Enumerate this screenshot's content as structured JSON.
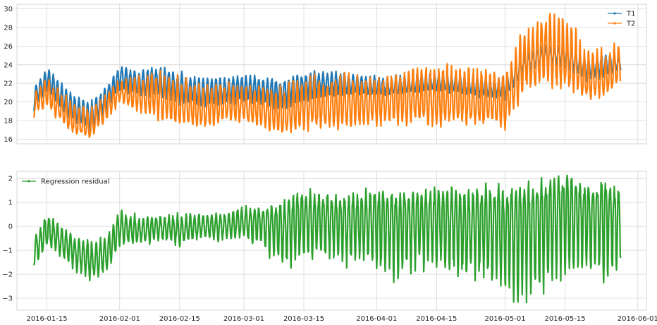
{
  "chart_data": [
    {
      "type": "line",
      "title": "",
      "xlabel": "",
      "ylabel": "",
      "ylim": [
        15.5,
        30.5
      ],
      "yticks": [
        "16",
        "18",
        "20",
        "22",
        "24",
        "26",
        "28",
        "30"
      ],
      "grid": true,
      "legend_position": "top-right",
      "x_range": [
        "2016-01-08",
        "2016-06-03"
      ],
      "x": [
        "2016-01-12",
        "2016-01-15",
        "2016-01-20",
        "2016-01-25",
        "2016-01-29",
        "2016-02-01",
        "2016-02-05",
        "2016-02-10",
        "2016-02-15",
        "2016-02-20",
        "2016-02-25",
        "2016-03-01",
        "2016-03-05",
        "2016-03-10",
        "2016-03-15",
        "2016-03-20",
        "2016-03-25",
        "2016-04-01",
        "2016-04-05",
        "2016-04-10",
        "2016-04-15",
        "2016-04-20",
        "2016-04-25",
        "2016-05-01",
        "2016-05-05",
        "2016-05-10",
        "2016-05-15",
        "2016-05-20",
        "2016-05-25",
        "2016-05-28"
      ],
      "series": [
        {
          "name": "T1",
          "color": "#1f77b4",
          "values": [
            20.5,
            22.5,
            19.5,
            18.2,
            20.5,
            22.8,
            22.0,
            22.3,
            21.5,
            21.0,
            21.2,
            21.5,
            21.3,
            21.0,
            21.8,
            22.0,
            21.8,
            21.5,
            21.5,
            21.8,
            22.0,
            21.8,
            21.5,
            21.3,
            24.0,
            25.0,
            25.2,
            23.5,
            24.0,
            24.2
          ],
          "min": [
            19.0,
            21.0,
            18.2,
            16.8,
            19.0,
            21.3,
            20.8,
            20.5,
            19.8,
            19.5,
            19.8,
            20.0,
            19.8,
            19.2,
            20.0,
            20.5,
            20.8,
            20.8,
            20.8,
            21.0,
            21.2,
            21.0,
            20.5,
            20.3,
            22.8,
            23.8,
            23.5,
            22.3,
            22.8,
            23.5
          ],
          "max": [
            21.6,
            23.7,
            21.3,
            20.0,
            21.8,
            24.0,
            23.4,
            23.8,
            23.2,
            22.6,
            22.8,
            23.0,
            22.8,
            22.5,
            23.2,
            23.3,
            23.2,
            22.8,
            22.8,
            23.0,
            23.2,
            23.0,
            22.8,
            22.6,
            25.2,
            26.0,
            26.0,
            24.6,
            25.3,
            25.0
          ]
        },
        {
          "name": "T2",
          "color": "#ff7f0e",
          "values": [
            19.5,
            21.0,
            18.0,
            17.0,
            19.5,
            21.0,
            20.5,
            20.5,
            19.5,
            19.0,
            19.5,
            19.5,
            19.0,
            18.5,
            19.5,
            19.5,
            19.8,
            19.8,
            20.0,
            20.0,
            19.8,
            19.8,
            19.8,
            19.5,
            23.5,
            25.0,
            24.5,
            22.0,
            22.5,
            24.0
          ],
          "min": [
            18.5,
            19.5,
            17.0,
            16.0,
            18.0,
            19.8,
            19.0,
            18.0,
            17.5,
            17.2,
            17.8,
            17.8,
            17.2,
            16.5,
            17.0,
            17.0,
            17.2,
            17.5,
            17.5,
            17.8,
            17.5,
            17.5,
            17.5,
            17.3,
            20.8,
            22.0,
            21.5,
            20.3,
            21.0,
            22.0
          ],
          "max": [
            20.8,
            22.8,
            20.5,
            19.5,
            21.0,
            22.5,
            22.8,
            23.2,
            22.8,
            21.8,
            22.2,
            22.0,
            21.8,
            22.0,
            22.8,
            22.8,
            23.0,
            22.8,
            23.5,
            24.0,
            24.3,
            24.2,
            23.8,
            23.5,
            28.0,
            29.8,
            29.5,
            26.0,
            25.5,
            26.8
          ]
        }
      ]
    },
    {
      "type": "line",
      "title": "",
      "xlabel": "",
      "ylabel": "",
      "ylim": [
        -3.5,
        2.3
      ],
      "yticks": [
        "−3",
        "−2",
        "−1",
        "0",
        "1",
        "2"
      ],
      "xticks": [
        "2016-01-15",
        "2016-02-01",
        "2016-02-15",
        "2016-03-01",
        "2016-03-15",
        "2016-04-01",
        "2016-04-15",
        "2016-05-01",
        "2016-05-15",
        "2016-06-01"
      ],
      "grid": true,
      "legend_position": "top-left",
      "x_range": [
        "2016-01-08",
        "2016-06-03"
      ],
      "x": [
        "2016-01-12",
        "2016-01-15",
        "2016-01-20",
        "2016-01-25",
        "2016-01-29",
        "2016-02-01",
        "2016-02-05",
        "2016-02-10",
        "2016-02-15",
        "2016-02-20",
        "2016-02-25",
        "2016-03-01",
        "2016-03-05",
        "2016-03-10",
        "2016-03-15",
        "2016-03-20",
        "2016-03-25",
        "2016-04-01",
        "2016-04-05",
        "2016-04-10",
        "2016-04-15",
        "2016-04-20",
        "2016-04-25",
        "2016-05-01",
        "2016-05-05",
        "2016-05-10",
        "2016-05-15",
        "2016-05-20",
        "2016-05-25",
        "2016-05-28"
      ],
      "series": [
        {
          "name": "Regression residual",
          "color": "#2ca02c",
          "values": [
            -1.1,
            -0.2,
            -0.8,
            -1.5,
            -1.2,
            0.0,
            -0.2,
            0.0,
            -0.2,
            0.0,
            0.0,
            0.2,
            0.3,
            0.2,
            0.6,
            0.6,
            0.5,
            0.5,
            0.5,
            0.5,
            0.5,
            0.4,
            0.5,
            0.5,
            0.6,
            0.8,
            1.0,
            0.8,
            1.1,
            0.6
          ],
          "min": [
            -1.8,
            -0.8,
            -1.6,
            -2.3,
            -1.9,
            -0.8,
            -0.8,
            -0.6,
            -0.8,
            -0.5,
            -0.6,
            -0.6,
            -1.0,
            -1.7,
            -1.5,
            -1.5,
            -1.6,
            -1.8,
            -2.5,
            -1.8,
            -1.8,
            -2.3,
            -2.5,
            -3.0,
            -3.2,
            -2.8,
            -2.5,
            -2.0,
            -2.6,
            -1.8
          ],
          "max": [
            -0.4,
            0.6,
            -0.2,
            -0.6,
            -0.4,
            0.7,
            0.5,
            0.5,
            0.5,
            0.6,
            0.6,
            0.8,
            0.9,
            1.0,
            1.5,
            1.3,
            1.2,
            1.6,
            1.5,
            1.4,
            1.6,
            1.5,
            1.6,
            1.5,
            1.6,
            1.8,
            2.1,
            1.6,
            1.8,
            1.3
          ]
        }
      ]
    }
  ]
}
